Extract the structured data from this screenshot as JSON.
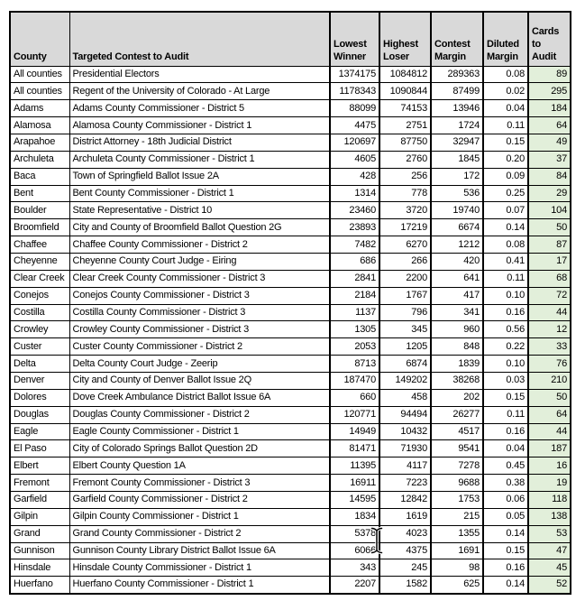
{
  "colors": {
    "header_bg": "#d9d9d9",
    "cards_column_fill": "#e2efda",
    "grid": "#000000",
    "text": "#000000",
    "page_bg": "#ffffff"
  },
  "cursor": {
    "icon": "text-ibeam-cursor"
  },
  "table": {
    "columns": [
      {
        "id": "county",
        "label": "County"
      },
      {
        "id": "contest",
        "label": "Targeted Contest to Audit"
      },
      {
        "id": "lowest-winner",
        "label": "Lowest Winner"
      },
      {
        "id": "highest-loser",
        "label": "Highest Loser"
      },
      {
        "id": "contest-margin",
        "label": "Contest Margin"
      },
      {
        "id": "diluted-margin",
        "label": "Diluted Margin"
      },
      {
        "id": "cards-to-audit",
        "label": "Cards to Audit"
      }
    ],
    "rows": [
      [
        "All counties",
        "Presidential Electors",
        "1374175",
        "1084812",
        "289363",
        "0.08",
        "89"
      ],
      [
        "All counties",
        "Regent of the University of Colorado - At Large",
        "1178343",
        "1090844",
        "87499",
        "0.02",
        "295"
      ],
      [
        "Adams",
        "Adams County Commissioner - District 5",
        "88099",
        "74153",
        "13946",
        "0.04",
        "184"
      ],
      [
        "Alamosa",
        "Alamosa County Commissioner - District 1",
        "4475",
        "2751",
        "1724",
        "0.11",
        "64"
      ],
      [
        "Arapahoe",
        "District Attorney - 18th Judicial District",
        "120697",
        "87750",
        "32947",
        "0.15",
        "49"
      ],
      [
        "Archuleta",
        "Archuleta County Commissioner - District 1",
        "4605",
        "2760",
        "1845",
        "0.20",
        "37"
      ],
      [
        "Baca",
        "Town of Springfield Ballot Issue 2A",
        "428",
        "256",
        "172",
        "0.09",
        "84"
      ],
      [
        "Bent",
        "Bent County Commissioner - District 1",
        "1314",
        "778",
        "536",
        "0.25",
        "29"
      ],
      [
        "Boulder",
        "State Representative - District 10",
        "23460",
        "3720",
        "19740",
        "0.07",
        "104"
      ],
      [
        "Broomfield",
        "City and County of Broomfield Ballot Question 2G",
        "23893",
        "17219",
        "6674",
        "0.14",
        "50"
      ],
      [
        "Chaffee",
        "Chaffee County Commissioner - District 2",
        "7482",
        "6270",
        "1212",
        "0.08",
        "87"
      ],
      [
        "Cheyenne",
        "Cheyenne County Court Judge - Eiring",
        "686",
        "266",
        "420",
        "0.41",
        "17"
      ],
      [
        "Clear Creek",
        "Clear Creek County Commissioner - District 3",
        "2841",
        "2200",
        "641",
        "0.11",
        "68"
      ],
      [
        "Conejos",
        "Conejos County Commissioner - District 3",
        "2184",
        "1767",
        "417",
        "0.10",
        "72"
      ],
      [
        "Costilla",
        "Costilla County Commissioner - District 3",
        "1137",
        "796",
        "341",
        "0.16",
        "44"
      ],
      [
        "Crowley",
        "Crowley County Commissioner - District 3",
        "1305",
        "345",
        "960",
        "0.56",
        "12"
      ],
      [
        "Custer",
        "Custer County Commissioner - District 2",
        "2053",
        "1205",
        "848",
        "0.22",
        "33"
      ],
      [
        "Delta",
        "Delta County Court Judge - Zeerip",
        "8713",
        "6874",
        "1839",
        "0.10",
        "76"
      ],
      [
        "Denver",
        "City and County of Denver Ballot Issue 2Q",
        "187470",
        "149202",
        "38268",
        "0.03",
        "210"
      ],
      [
        "Dolores",
        "Dove Creek Ambulance District Ballot Issue 6A",
        "660",
        "458",
        "202",
        "0.15",
        "50"
      ],
      [
        "Douglas",
        "Douglas County Commissioner - District 2",
        "120771",
        "94494",
        "26277",
        "0.11",
        "64"
      ],
      [
        "Eagle",
        "Eagle County Commissioner - District 1",
        "14949",
        "10432",
        "4517",
        "0.16",
        "44"
      ],
      [
        "El Paso",
        "City of Colorado Springs Ballot Question 2D",
        "81471",
        "71930",
        "9541",
        "0.04",
        "187"
      ],
      [
        "Elbert",
        "Elbert County Question 1A",
        "11395",
        "4117",
        "7278",
        "0.45",
        "16"
      ],
      [
        "Fremont",
        "Fremont County Commissioner - District 3",
        "16911",
        "7223",
        "9688",
        "0.38",
        "19"
      ],
      [
        "Garfield",
        "Garfield County Commissioner - District 2",
        "14595",
        "12842",
        "1753",
        "0.06",
        "118"
      ],
      [
        "Gilpin",
        "Gilpin County Commissioner - District 1",
        "1834",
        "1619",
        "215",
        "0.05",
        "138"
      ],
      [
        "Grand",
        "Grand County Commissioner - District 2",
        "5378",
        "4023",
        "1355",
        "0.14",
        "53"
      ],
      [
        "Gunnison",
        "Gunnison County Library District Ballot Issue 6A",
        "6066",
        "4375",
        "1691",
        "0.15",
        "47"
      ],
      [
        "Hinsdale",
        "Hinsdale County Commissioner - District 1",
        "343",
        "245",
        "98",
        "0.16",
        "45"
      ],
      [
        "Huerfano",
        "Huerfano County Commissioner - District 1",
        "2207",
        "1582",
        "625",
        "0.14",
        "52"
      ]
    ]
  }
}
